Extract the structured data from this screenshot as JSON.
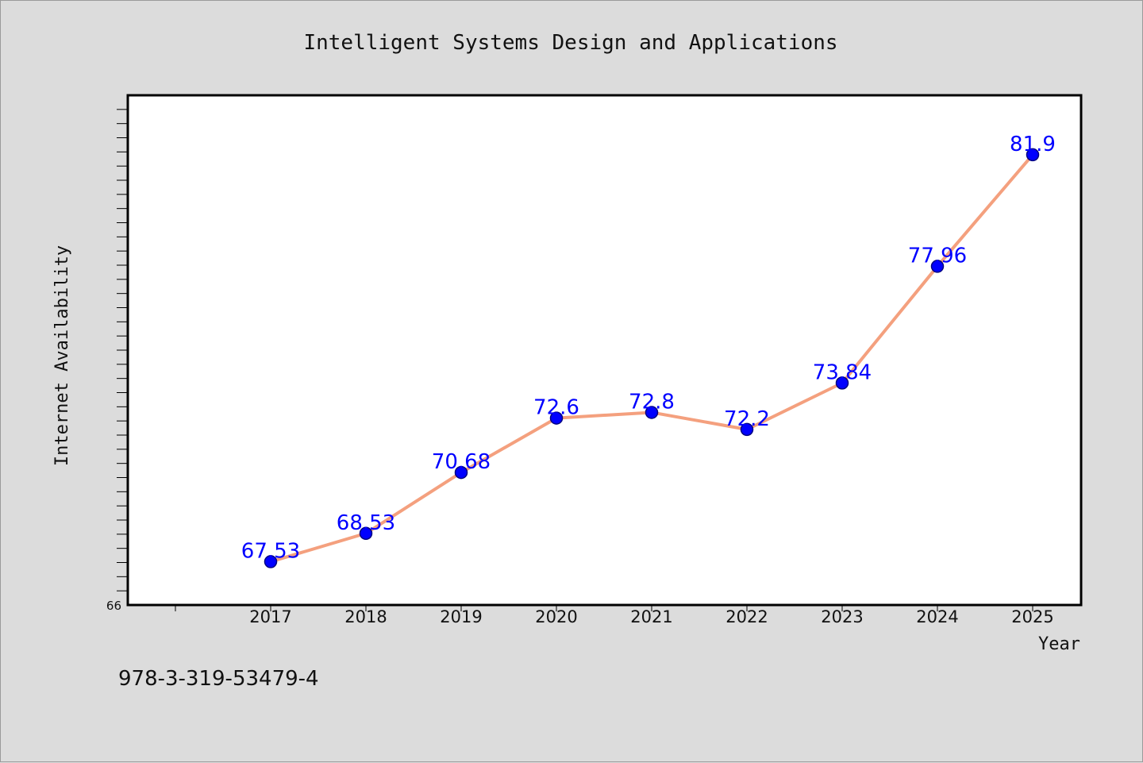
{
  "chart_data": {
    "type": "line",
    "title": "Intelligent Systems Design and Applications",
    "xlabel": "Year",
    "ylabel": "Internet Availability",
    "x": [
      "2017",
      "2018",
      "2019",
      "2020",
      "2021",
      "2022",
      "2023",
      "2024",
      "2025"
    ],
    "series": [
      {
        "values": [
          67.53,
          68.53,
          70.68,
          72.6,
          72.8,
          72.2,
          73.84,
          77.96,
          81.9
        ],
        "value_labels": [
          "67.53",
          "68.53",
          "70.68",
          "72.6",
          "72.8",
          "72.2",
          "73.84",
          "77.96",
          "81.9"
        ]
      }
    ],
    "ylim": [
      66,
      84
    ],
    "y_tick_labels": [
      "66"
    ],
    "grid": false,
    "legend": "none",
    "colors": {
      "line": "#f4a07e",
      "marker": "#0000ff",
      "marker_edge": "#000080",
      "data_label": "#0000ff",
      "background": "#dcdcdc",
      "plot_background": "#ffffff",
      "axis": "#000000"
    }
  },
  "footer": {
    "isbn": "978-3-319-53479-4"
  }
}
